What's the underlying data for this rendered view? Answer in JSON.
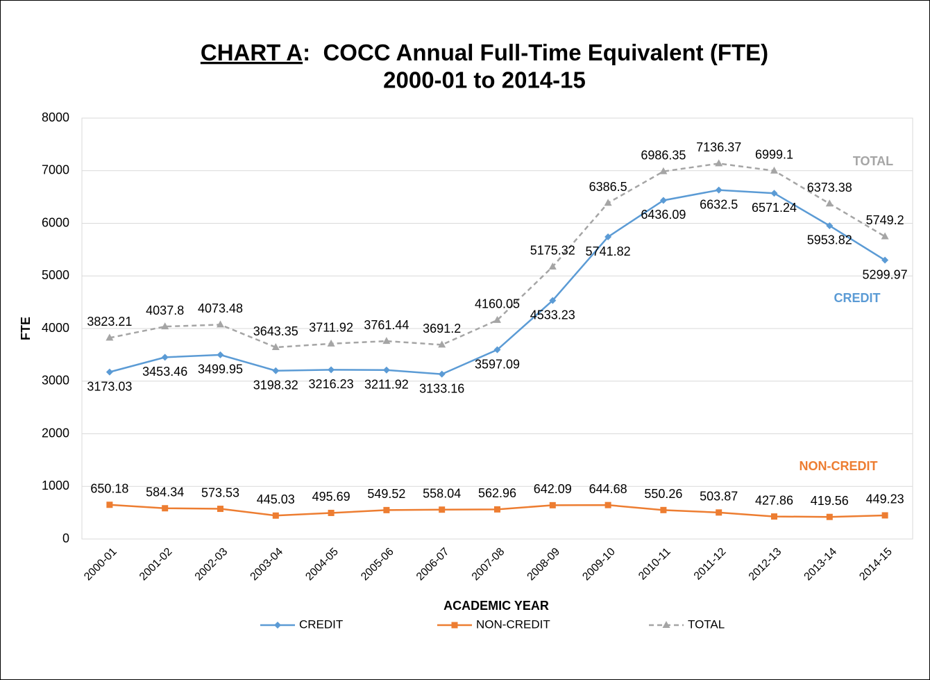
{
  "chart_data": {
    "type": "line",
    "title": [
      "CHART A",
      ":  COCC Annual Full-Time Equivalent (FTE)"
    ],
    "subtitle": "2000-01 to 2014-15",
    "x_label": "ACADEMIC YEAR",
    "y_label": "FTE",
    "categories": [
      "2000-01",
      "2001-02",
      "2002-03",
      "2003-04",
      "2004-05",
      "2005-06",
      "2006-07",
      "2007-08",
      "2008-09",
      "2009-10",
      "2010-11",
      "2011-12",
      "2012-13",
      "2013-14",
      "2014-15"
    ],
    "series": [
      {
        "name": "CREDIT",
        "color": "#5b9bd5",
        "marker": "diamond",
        "dashed": false,
        "values": [
          3173.03,
          3453.46,
          3499.95,
          3198.32,
          3216.23,
          3211.92,
          3133.16,
          3597.09,
          4533.23,
          5741.82,
          6436.09,
          6632.5,
          6571.24,
          5953.82,
          5299.97
        ]
      },
      {
        "name": "NON-CREDIT",
        "color": "#ed7d31",
        "marker": "square",
        "dashed": false,
        "values": [
          650.18,
          584.34,
          573.53,
          445.03,
          495.69,
          549.52,
          558.04,
          562.96,
          642.09,
          644.68,
          550.26,
          503.87,
          427.86,
          419.56,
          449.23
        ]
      },
      {
        "name": "TOTAL",
        "color": "#a5a5a5",
        "marker": "triangle",
        "dashed": true,
        "values": [
          3823.21,
          4037.8,
          4073.48,
          3643.35,
          3711.92,
          3761.44,
          3691.2,
          4160.05,
          5175.32,
          6386.5,
          6986.35,
          7136.37,
          6999.1,
          6373.38,
          5749.2
        ]
      }
    ],
    "ylim": [
      0,
      8000
    ],
    "yticks": [
      0,
      1000,
      2000,
      3000,
      4000,
      5000,
      6000,
      7000,
      8000
    ],
    "grid": true,
    "legend": "bottom"
  }
}
